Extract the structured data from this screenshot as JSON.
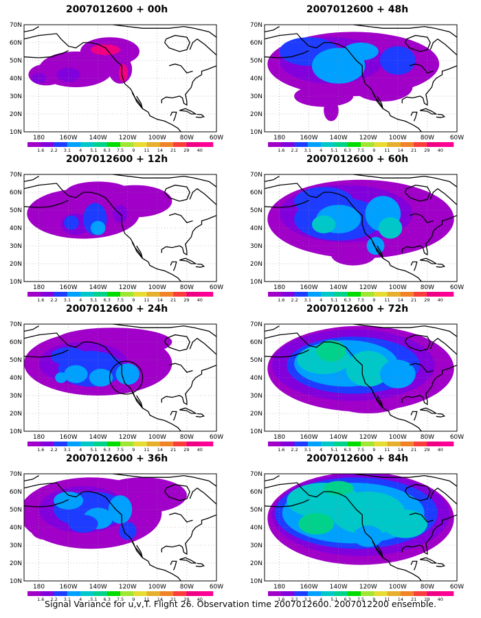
{
  "panels": [
    {
      "title": "2007012600 + 00h",
      "col": 0,
      "row": 0
    },
    {
      "title": "2007012600 + 48h",
      "col": 1,
      "row": 0
    },
    {
      "title": "2007012600 + 12h",
      "col": 0,
      "row": 1
    },
    {
      "title": "2007012600 + 60h",
      "col": 1,
      "row": 1
    },
    {
      "title": "2007012600 + 24h",
      "col": 0,
      "row": 2
    },
    {
      "title": "2007012600 + 72h",
      "col": 1,
      "row": 2
    },
    {
      "title": "2007012600 + 36h",
      "col": 0,
      "row": 3
    },
    {
      "title": "2007012600 + 84h",
      "col": 1,
      "row": 3
    }
  ],
  "axes": {
    "lat_labels": [
      "10N",
      "20N",
      "30N",
      "40N",
      "50N",
      "60N",
      "70N"
    ],
    "lon_labels": [
      "180",
      "160W",
      "140W",
      "120W",
      "100W",
      "80W",
      "60W"
    ],
    "lon_range": [
      -190,
      -60
    ],
    "lat_range": [
      10,
      70
    ]
  },
  "colorbar": {
    "labels": [
      "1.6",
      "2.2",
      "3.1",
      "4",
      "5.1",
      "6.3",
      "7.5",
      "9",
      "11",
      "14",
      "21",
      "29",
      "40"
    ],
    "colors": [
      "#a000c8",
      "#8200dc",
      "#1e3cff",
      "#00a0ff",
      "#00c8c8",
      "#00d28c",
      "#00dc00",
      "#a0e632",
      "#e6dc32",
      "#e6af2d",
      "#f08228",
      "#fa3c3c",
      "#f00082",
      "#ff0096"
    ]
  },
  "footer": "Signal Variance for u,v,T. Flight 26. Observation time 2007012600. 2007012200 ensemble."
}
